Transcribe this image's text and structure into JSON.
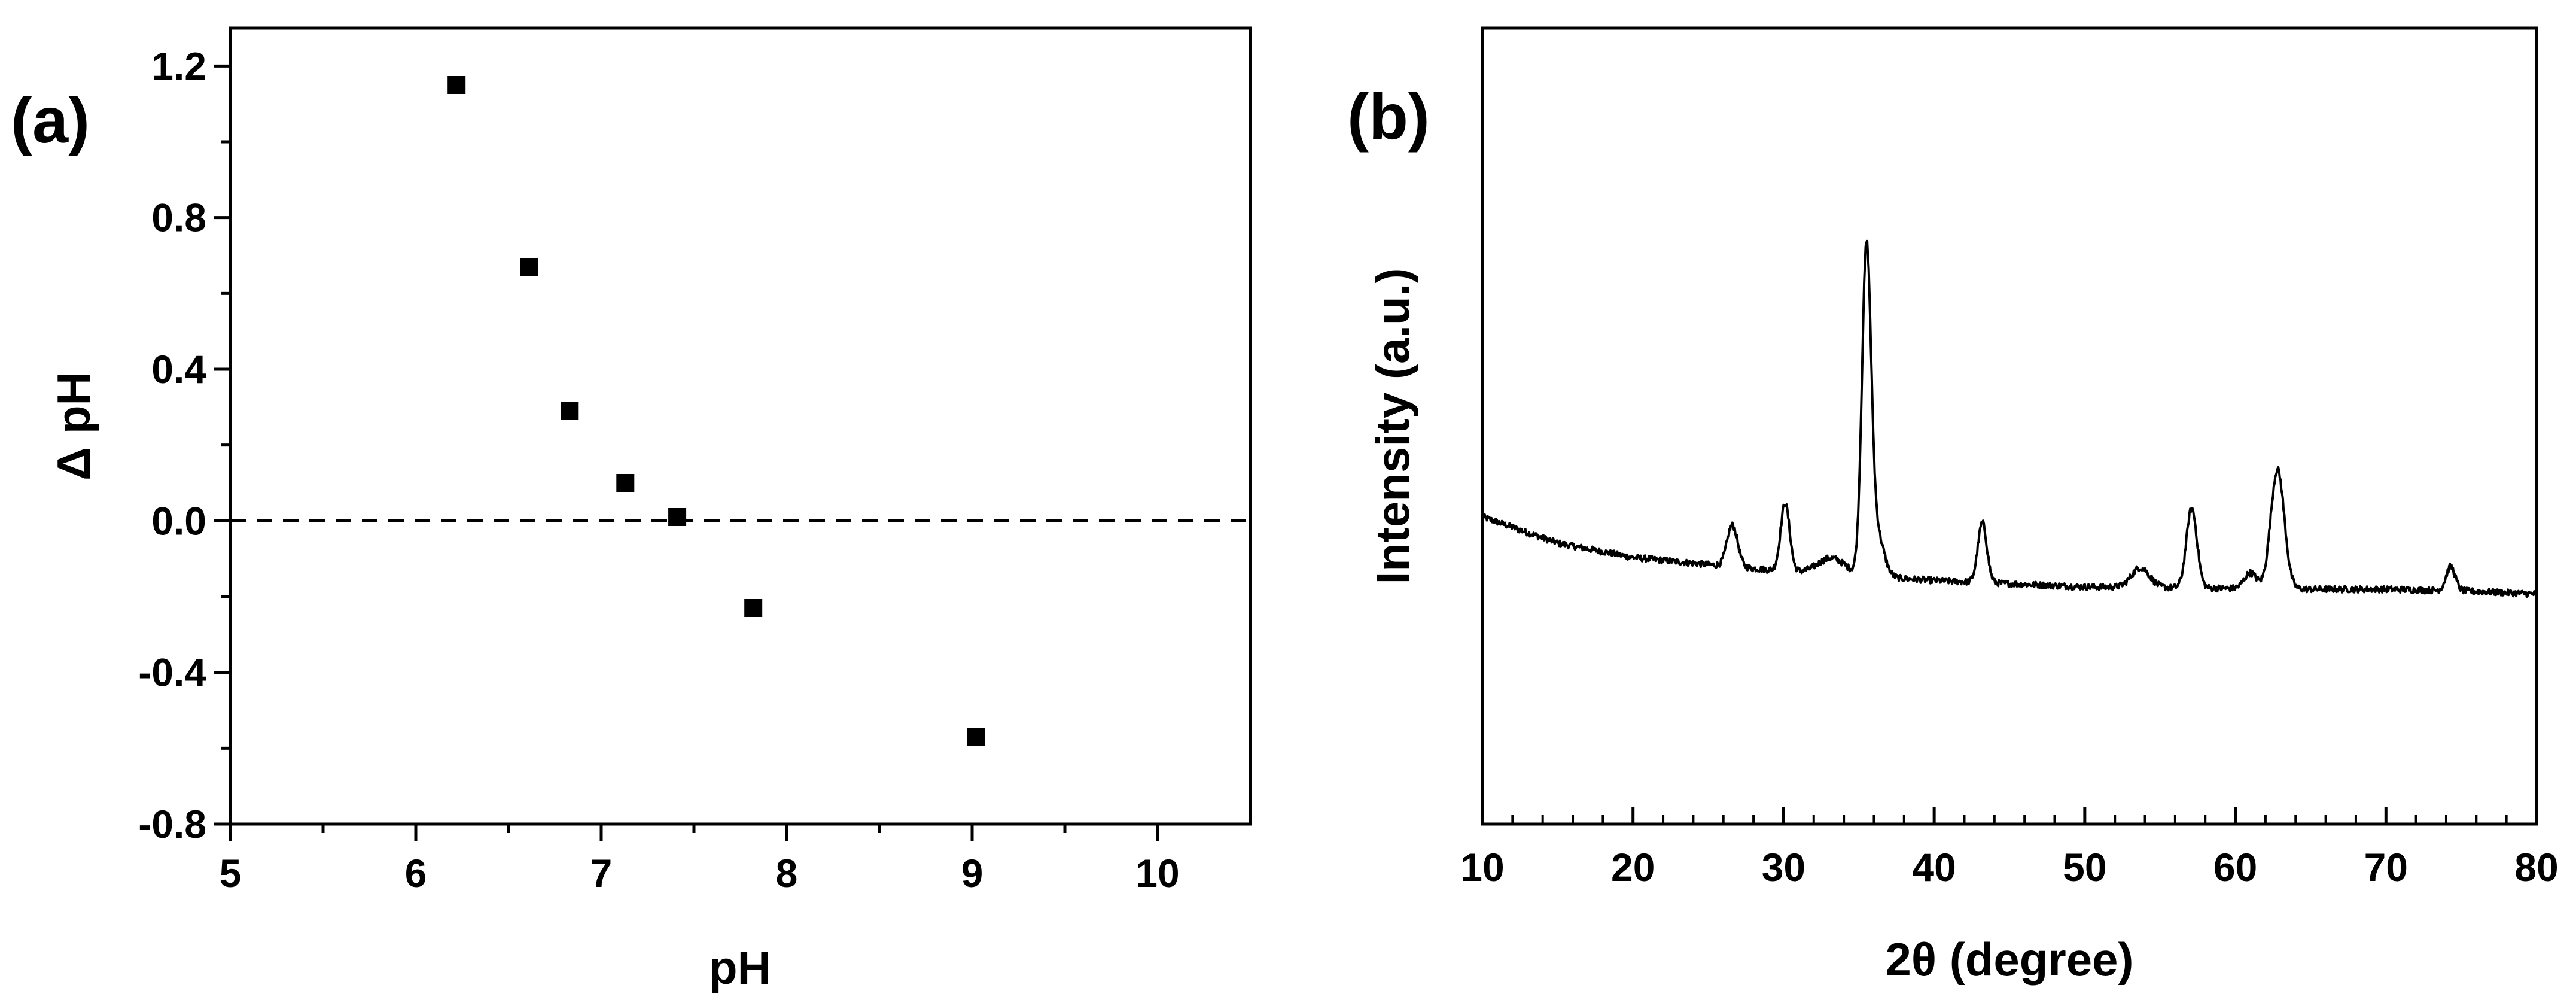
{
  "chart_data": [
    {
      "type": "scatter",
      "panel_label": "(a)",
      "xlabel": "pH",
      "ylabel": "Δ pH",
      "xlim": [
        5,
        10.5
      ],
      "ylim": [
        -0.8,
        1.3
      ],
      "x_ticks": [
        5,
        6,
        7,
        8,
        9,
        10
      ],
      "y_ticks": [
        -0.8,
        -0.4,
        0.0,
        0.4,
        0.8,
        1.2
      ],
      "x_tick_labels": [
        "5",
        "6",
        "7",
        "8",
        "9",
        "10"
      ],
      "y_tick_labels": [
        "-0.8",
        "-0.4",
        "0.0",
        "0.4",
        "0.8",
        "1.2"
      ],
      "reference_line": {
        "y": 0,
        "style": "dashed"
      },
      "marker": "square",
      "points": [
        {
          "x": 6.22,
          "y": 1.15
        },
        {
          "x": 6.61,
          "y": 0.67
        },
        {
          "x": 6.83,
          "y": 0.29
        },
        {
          "x": 7.13,
          "y": 0.1
        },
        {
          "x": 7.41,
          "y": 0.01
        },
        {
          "x": 7.82,
          "y": -0.23
        },
        {
          "x": 9.02,
          "y": -0.57
        }
      ]
    },
    {
      "type": "line",
      "panel_label": "(b)",
      "xlabel": "2θ (degree)",
      "ylabel": "Intensity (a.u.)",
      "xlim": [
        10,
        80
      ],
      "ylim": [
        0,
        1
      ],
      "x_ticks": [
        10,
        20,
        30,
        40,
        50,
        60,
        70,
        80
      ],
      "x_tick_labels": [
        "10",
        "20",
        "30",
        "40",
        "50",
        "60",
        "70",
        "80"
      ],
      "y_tick_labels_shown": false,
      "baseline": [
        [
          10,
          0.386
        ],
        [
          15,
          0.353
        ],
        [
          20,
          0.335
        ],
        [
          25,
          0.326
        ],
        [
          30,
          0.318
        ],
        [
          35,
          0.312
        ],
        [
          40,
          0.306
        ],
        [
          45,
          0.302
        ],
        [
          50,
          0.298
        ],
        [
          55,
          0.297
        ],
        [
          60,
          0.296
        ],
        [
          65,
          0.295
        ],
        [
          70,
          0.295
        ],
        [
          75,
          0.293
        ],
        [
          80,
          0.289
        ]
      ],
      "peaks": [
        {
          "two_theta": 26.6,
          "height": 0.052,
          "width": 0.35
        },
        {
          "two_theta": 30.1,
          "height": 0.085,
          "width": 0.3
        },
        {
          "two_theta": 33.2,
          "height": 0.02,
          "width": 0.9
        },
        {
          "two_theta": 35.5,
          "height": 0.39,
          "width": 0.3
        },
        {
          "two_theta": 36.1,
          "height": 0.06,
          "width": 0.5
        },
        {
          "two_theta": 43.2,
          "height": 0.075,
          "width": 0.3
        },
        {
          "two_theta": 53.7,
          "height": 0.025,
          "width": 0.6
        },
        {
          "two_theta": 57.1,
          "height": 0.1,
          "width": 0.35
        },
        {
          "two_theta": 61.0,
          "height": 0.02,
          "width": 0.4
        },
        {
          "two_theta": 62.8,
          "height": 0.15,
          "width": 0.45
        },
        {
          "two_theta": 74.3,
          "height": 0.03,
          "width": 0.3
        }
      ]
    }
  ]
}
